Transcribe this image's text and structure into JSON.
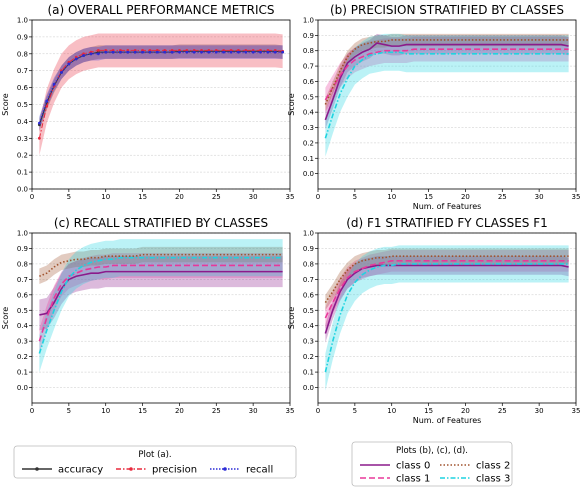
{
  "colors": {
    "accuracy": "#333333",
    "precision": "#e8283c",
    "recall": "#2b2bd6",
    "class0": "#8b1a8b",
    "class1": "#e8389a",
    "class2": "#a0522d",
    "class3": "#1fd3e0"
  },
  "chart_data": [
    {
      "type": "line",
      "title": "(a) OVERALL PERFORMANCE METRICS",
      "xlabel": "",
      "ylabel": "Score",
      "xlim": [
        0,
        35
      ],
      "ylim": [
        0,
        1.0
      ],
      "xticks": [
        0,
        5,
        10,
        15,
        20,
        25,
        30,
        35
      ],
      "yticks": [
        0.0,
        0.1,
        0.2,
        0.3,
        0.4,
        0.5,
        0.6,
        0.7,
        0.8,
        0.9,
        1.0
      ],
      "grid": "horizontal",
      "x": [
        1,
        2,
        3,
        4,
        5,
        6,
        7,
        8,
        9,
        10,
        11,
        12,
        13,
        14,
        15,
        16,
        17,
        18,
        19,
        20,
        21,
        22,
        23,
        24,
        25,
        26,
        27,
        28,
        29,
        30,
        31,
        32,
        33,
        34
      ],
      "series": [
        {
          "name": "accuracy",
          "color_key": "accuracy",
          "marker": "dot",
          "dash": "",
          "values": [
            0.38,
            0.51,
            0.61,
            0.69,
            0.74,
            0.77,
            0.79,
            0.8,
            0.81,
            0.81,
            0.81,
            0.81,
            0.81,
            0.81,
            0.81,
            0.81,
            0.81,
            0.81,
            0.81,
            0.815,
            0.815,
            0.815,
            0.815,
            0.815,
            0.815,
            0.815,
            0.815,
            0.815,
            0.815,
            0.815,
            0.815,
            0.815,
            0.815,
            0.81
          ],
          "band": 0.04
        },
        {
          "name": "precision",
          "color_key": "precision",
          "marker": "dot",
          "dash": "5,2,1.5,2",
          "values": [
            0.3,
            0.49,
            0.61,
            0.7,
            0.75,
            0.78,
            0.8,
            0.81,
            0.82,
            0.82,
            0.82,
            0.82,
            0.82,
            0.82,
            0.82,
            0.82,
            0.82,
            0.82,
            0.82,
            0.82,
            0.82,
            0.82,
            0.82,
            0.82,
            0.82,
            0.82,
            0.82,
            0.82,
            0.82,
            0.82,
            0.82,
            0.82,
            0.82,
            0.815
          ],
          "band": 0.1
        },
        {
          "name": "recall",
          "color_key": "recall",
          "marker": "dot",
          "dash": "1.5,1.5",
          "values": [
            0.39,
            0.52,
            0.62,
            0.69,
            0.74,
            0.77,
            0.79,
            0.8,
            0.8,
            0.81,
            0.81,
            0.81,
            0.81,
            0.81,
            0.81,
            0.81,
            0.81,
            0.81,
            0.81,
            0.81,
            0.81,
            0.81,
            0.81,
            0.81,
            0.81,
            0.81,
            0.81,
            0.81,
            0.81,
            0.81,
            0.81,
            0.81,
            0.81,
            0.81
          ],
          "band": 0.04
        }
      ]
    },
    {
      "type": "line",
      "title": "(b) PRECISION STRATIFIED BY CLASSES",
      "xlabel": "Num. of Features",
      "ylabel": "Score",
      "xlim": [
        0,
        35
      ],
      "ylim": [
        -0.1,
        1.0
      ],
      "xticks": [
        0,
        5,
        10,
        15,
        20,
        25,
        30,
        35
      ],
      "yticks": [
        0.0,
        0.1,
        0.2,
        0.3,
        0.4,
        0.5,
        0.6,
        0.7,
        0.8,
        0.9,
        1.0
      ],
      "grid": "horizontal",
      "x": [
        1,
        2,
        3,
        4,
        5,
        6,
        7,
        8,
        9,
        10,
        11,
        12,
        13,
        14,
        15,
        16,
        17,
        18,
        19,
        20,
        21,
        22,
        23,
        24,
        25,
        26,
        27,
        28,
        29,
        30,
        31,
        32,
        33,
        34
      ],
      "series": [
        {
          "name": "class 0",
          "color_key": "class0",
          "dash": "",
          "width": 1.6,
          "values": [
            0.35,
            0.48,
            0.62,
            0.72,
            0.76,
            0.79,
            0.81,
            0.85,
            0.84,
            0.83,
            0.83,
            0.84,
            0.84,
            0.84,
            0.84,
            0.84,
            0.84,
            0.84,
            0.84,
            0.84,
            0.84,
            0.84,
            0.84,
            0.84,
            0.84,
            0.84,
            0.84,
            0.84,
            0.84,
            0.84,
            0.84,
            0.84,
            0.84,
            0.83
          ],
          "band": 0.06
        },
        {
          "name": "class 1",
          "color_key": "class1",
          "dash": "6,3",
          "width": 1.6,
          "values": [
            0.48,
            0.56,
            0.64,
            0.7,
            0.74,
            0.76,
            0.78,
            0.79,
            0.8,
            0.8,
            0.8,
            0.8,
            0.81,
            0.81,
            0.81,
            0.81,
            0.81,
            0.81,
            0.81,
            0.81,
            0.81,
            0.81,
            0.81,
            0.81,
            0.81,
            0.81,
            0.81,
            0.81,
            0.81,
            0.81,
            0.81,
            0.81,
            0.81,
            0.81
          ],
          "band": 0.08
        },
        {
          "name": "class 2",
          "color_key": "class2",
          "dash": "1.5,2",
          "width": 1.6,
          "values": [
            0.45,
            0.56,
            0.67,
            0.76,
            0.81,
            0.84,
            0.85,
            0.86,
            0.86,
            0.87,
            0.87,
            0.87,
            0.87,
            0.87,
            0.87,
            0.87,
            0.87,
            0.87,
            0.87,
            0.87,
            0.87,
            0.87,
            0.87,
            0.87,
            0.87,
            0.87,
            0.87,
            0.87,
            0.87,
            0.87,
            0.87,
            0.87,
            0.87,
            0.87
          ],
          "band": 0.04
        },
        {
          "name": "class 3",
          "color_key": "class3",
          "dash": "5,2,1.5,2",
          "width": 1.6,
          "values": [
            0.23,
            0.38,
            0.52,
            0.62,
            0.7,
            0.74,
            0.77,
            0.78,
            0.79,
            0.79,
            0.79,
            0.78,
            0.78,
            0.78,
            0.78,
            0.78,
            0.78,
            0.78,
            0.78,
            0.78,
            0.78,
            0.78,
            0.78,
            0.78,
            0.78,
            0.78,
            0.78,
            0.78,
            0.78,
            0.78,
            0.78,
            0.78,
            0.78,
            0.78
          ],
          "band": 0.12
        }
      ]
    },
    {
      "type": "line",
      "title": "(c) RECALL STRATIFIED BY CLASSES",
      "xlabel": "",
      "ylabel": "Score",
      "xlim": [
        0,
        35
      ],
      "ylim": [
        -0.1,
        1.0
      ],
      "xticks": [
        0,
        5,
        10,
        15,
        20,
        25,
        30,
        35
      ],
      "yticks": [
        0.0,
        0.1,
        0.2,
        0.3,
        0.4,
        0.5,
        0.6,
        0.7,
        0.8,
        0.9,
        1.0
      ],
      "grid": "horizontal",
      "x": [
        1,
        2,
        3,
        4,
        5,
        6,
        7,
        8,
        9,
        10,
        11,
        12,
        13,
        14,
        15,
        16,
        17,
        18,
        19,
        20,
        21,
        22,
        23,
        24,
        25,
        26,
        27,
        28,
        29,
        30,
        31,
        32,
        33,
        34
      ],
      "series": [
        {
          "name": "class 0",
          "color_key": "class0",
          "dash": "",
          "width": 1.6,
          "values": [
            0.47,
            0.48,
            0.55,
            0.64,
            0.7,
            0.72,
            0.73,
            0.74,
            0.74,
            0.75,
            0.75,
            0.75,
            0.75,
            0.75,
            0.75,
            0.75,
            0.75,
            0.75,
            0.75,
            0.75,
            0.75,
            0.75,
            0.75,
            0.75,
            0.75,
            0.75,
            0.75,
            0.75,
            0.75,
            0.75,
            0.75,
            0.75,
            0.75,
            0.75
          ],
          "band": 0.1
        },
        {
          "name": "class 1",
          "color_key": "class1",
          "dash": "6,3",
          "width": 1.6,
          "values": [
            0.3,
            0.45,
            0.58,
            0.67,
            0.72,
            0.74,
            0.76,
            0.77,
            0.78,
            0.78,
            0.79,
            0.79,
            0.79,
            0.79,
            0.79,
            0.79,
            0.79,
            0.79,
            0.79,
            0.79,
            0.79,
            0.79,
            0.79,
            0.79,
            0.79,
            0.79,
            0.79,
            0.79,
            0.79,
            0.79,
            0.79,
            0.79,
            0.79,
            0.79
          ],
          "band": 0.08
        },
        {
          "name": "class 2",
          "color_key": "class2",
          "dash": "1.5,2",
          "width": 1.6,
          "values": [
            0.72,
            0.74,
            0.78,
            0.81,
            0.82,
            0.83,
            0.83,
            0.84,
            0.84,
            0.85,
            0.85,
            0.85,
            0.85,
            0.85,
            0.86,
            0.86,
            0.86,
            0.86,
            0.86,
            0.86,
            0.86,
            0.86,
            0.86,
            0.86,
            0.86,
            0.86,
            0.86,
            0.86,
            0.86,
            0.86,
            0.86,
            0.86,
            0.86,
            0.86
          ],
          "band": 0.05
        },
        {
          "name": "class 3",
          "color_key": "class3",
          "dash": "5,2,1.5,2",
          "width": 1.6,
          "values": [
            0.22,
            0.37,
            0.5,
            0.62,
            0.71,
            0.76,
            0.79,
            0.81,
            0.82,
            0.83,
            0.83,
            0.84,
            0.84,
            0.84,
            0.84,
            0.84,
            0.84,
            0.84,
            0.84,
            0.84,
            0.84,
            0.84,
            0.84,
            0.84,
            0.84,
            0.84,
            0.84,
            0.84,
            0.84,
            0.84,
            0.84,
            0.84,
            0.84,
            0.84
          ],
          "band": 0.12
        }
      ]
    },
    {
      "type": "line",
      "title": "(d) F1 STRATIFIED FY CLASSES F1",
      "xlabel": "Num. of Features",
      "ylabel": "Score",
      "xlim": [
        0,
        35
      ],
      "ylim": [
        -0.1,
        1.0
      ],
      "xticks": [
        0,
        5,
        10,
        15,
        20,
        25,
        30,
        35
      ],
      "yticks": [
        0.0,
        0.1,
        0.2,
        0.3,
        0.4,
        0.5,
        0.6,
        0.7,
        0.8,
        0.9,
        1.0
      ],
      "grid": "horizontal",
      "x": [
        1,
        2,
        3,
        4,
        5,
        6,
        7,
        8,
        9,
        10,
        11,
        12,
        13,
        14,
        15,
        16,
        17,
        18,
        19,
        20,
        21,
        22,
        23,
        24,
        25,
        26,
        27,
        28,
        29,
        30,
        31,
        32,
        33,
        34
      ],
      "series": [
        {
          "name": "class 0",
          "color_key": "class0",
          "dash": "",
          "width": 1.6,
          "values": [
            0.35,
            0.5,
            0.62,
            0.7,
            0.74,
            0.77,
            0.78,
            0.79,
            0.79,
            0.79,
            0.79,
            0.79,
            0.79,
            0.79,
            0.79,
            0.79,
            0.79,
            0.79,
            0.79,
            0.79,
            0.79,
            0.79,
            0.79,
            0.79,
            0.79,
            0.79,
            0.79,
            0.79,
            0.79,
            0.79,
            0.79,
            0.79,
            0.79,
            0.78
          ],
          "band": 0.06
        },
        {
          "name": "class 1",
          "color_key": "class1",
          "dash": "6,3",
          "width": 1.6,
          "values": [
            0.45,
            0.55,
            0.64,
            0.71,
            0.75,
            0.77,
            0.79,
            0.8,
            0.81,
            0.82,
            0.82,
            0.82,
            0.82,
            0.82,
            0.82,
            0.82,
            0.82,
            0.82,
            0.82,
            0.82,
            0.82,
            0.82,
            0.82,
            0.82,
            0.82,
            0.82,
            0.82,
            0.82,
            0.82,
            0.82,
            0.82,
            0.82,
            0.82,
            0.82
          ],
          "band": 0.07
        },
        {
          "name": "class 2",
          "color_key": "class2",
          "dash": "1.5,2",
          "width": 1.6,
          "values": [
            0.55,
            0.62,
            0.7,
            0.76,
            0.8,
            0.82,
            0.83,
            0.84,
            0.84,
            0.85,
            0.85,
            0.85,
            0.85,
            0.85,
            0.85,
            0.85,
            0.85,
            0.85,
            0.85,
            0.85,
            0.85,
            0.85,
            0.85,
            0.85,
            0.85,
            0.85,
            0.85,
            0.85,
            0.85,
            0.85,
            0.85,
            0.85,
            0.85,
            0.85
          ],
          "band": 0.05
        },
        {
          "name": "class 3",
          "color_key": "class3",
          "dash": "5,2,1.5,2",
          "width": 1.6,
          "values": [
            0.1,
            0.3,
            0.47,
            0.6,
            0.68,
            0.73,
            0.76,
            0.78,
            0.79,
            0.79,
            0.8,
            0.8,
            0.8,
            0.8,
            0.8,
            0.8,
            0.8,
            0.8,
            0.8,
            0.8,
            0.8,
            0.8,
            0.8,
            0.8,
            0.8,
            0.8,
            0.8,
            0.8,
            0.8,
            0.8,
            0.8,
            0.8,
            0.8,
            0.8
          ],
          "band": 0.12
        }
      ]
    }
  ],
  "legend_a": {
    "title": "Plot (a).",
    "items": [
      {
        "label": "accuracy",
        "color_key": "accuracy",
        "dash": ""
      },
      {
        "label": "precision",
        "color_key": "precision",
        "dash": "5,2,1.5,2"
      },
      {
        "label": "recall",
        "color_key": "recall",
        "dash": "1.5,1.5"
      }
    ]
  },
  "legend_b": {
    "title": "Plots (b), (c), (d).",
    "items": [
      {
        "label": "class 0",
        "color_key": "class0",
        "dash": ""
      },
      {
        "label": "class 2",
        "color_key": "class2",
        "dash": "1.5,2"
      },
      {
        "label": "class 1",
        "color_key": "class1",
        "dash": "6,3"
      },
      {
        "label": "class 3",
        "color_key": "class3",
        "dash": "5,2,1.5,2"
      }
    ]
  }
}
